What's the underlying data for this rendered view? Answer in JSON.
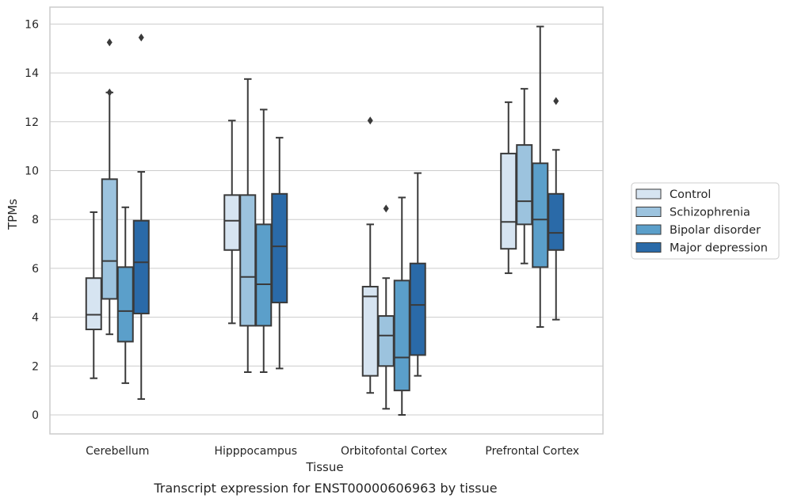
{
  "caption": "Transcript expression for ENST00000606963 by tissue",
  "chart_data": {
    "type": "boxplot",
    "xlabel": "Tissue",
    "ylabel": "TPMs",
    "ylim": [
      -0.75,
      16.7
    ],
    "yticks": [
      0,
      2,
      4,
      6,
      8,
      10,
      12,
      14,
      16
    ],
    "grid": "horizontal",
    "legend_position": "right",
    "categories": [
      "Cerebellum",
      "Hipppocampus",
      "Orbitofontal Cortex",
      "Prefrontal Cortex"
    ],
    "series": [
      {
        "name": "Control",
        "color": "#d6e4f1",
        "boxes": [
          {
            "whislo": 1.5,
            "q1": 3.5,
            "med": 4.1,
            "q3": 5.6,
            "whishi": 8.3,
            "fliers": []
          },
          {
            "whislo": 3.75,
            "q1": 6.75,
            "med": 7.95,
            "q3": 9.0,
            "whishi": 12.05,
            "fliers": []
          },
          {
            "whislo": 0.9,
            "q1": 1.6,
            "med": 4.85,
            "q3": 5.25,
            "whishi": 7.8,
            "fliers": [
              12.05
            ]
          },
          {
            "whislo": 5.8,
            "q1": 6.8,
            "med": 7.9,
            "q3": 10.7,
            "whishi": 12.8,
            "fliers": []
          }
        ]
      },
      {
        "name": "Schizophrenia",
        "color": "#9cc3de",
        "boxes": [
          {
            "whislo": 3.3,
            "q1": 4.75,
            "med": 6.3,
            "q3": 9.65,
            "whishi": 13.2,
            "fliers": [
              13.2,
              15.25
            ]
          },
          {
            "whislo": 1.75,
            "q1": 3.65,
            "med": 5.65,
            "q3": 9.0,
            "whishi": 13.75,
            "fliers": []
          },
          {
            "whislo": 0.25,
            "q1": 2.0,
            "med": 3.25,
            "q3": 4.05,
            "whishi": 5.6,
            "fliers": [
              8.45
            ]
          },
          {
            "whislo": 6.2,
            "q1": 7.8,
            "med": 8.75,
            "q3": 11.05,
            "whishi": 13.35,
            "fliers": []
          }
        ]
      },
      {
        "name": "Bipolar disorder",
        "color": "#5b9fca",
        "boxes": [
          {
            "whislo": 1.3,
            "q1": 3.0,
            "med": 4.25,
            "q3": 6.05,
            "whishi": 8.5,
            "fliers": []
          },
          {
            "whislo": 1.75,
            "q1": 3.65,
            "med": 5.35,
            "q3": 7.8,
            "whishi": 12.5,
            "fliers": []
          },
          {
            "whislo": 0.0,
            "q1": 1.0,
            "med": 2.35,
            "q3": 5.5,
            "whishi": 8.9,
            "fliers": []
          },
          {
            "whislo": 3.6,
            "q1": 6.05,
            "med": 8.0,
            "q3": 10.3,
            "whishi": 15.9,
            "fliers": []
          }
        ]
      },
      {
        "name": "Major depression",
        "color": "#2a6aa8",
        "boxes": [
          {
            "whislo": 0.65,
            "q1": 4.15,
            "med": 6.25,
            "q3": 7.95,
            "whishi": 9.95,
            "fliers": [
              15.45
            ]
          },
          {
            "whislo": 1.9,
            "q1": 4.6,
            "med": 6.9,
            "q3": 9.05,
            "whishi": 11.35,
            "fliers": []
          },
          {
            "whislo": 1.6,
            "q1": 2.45,
            "med": 4.5,
            "q3": 6.2,
            "whishi": 9.9,
            "fliers": []
          },
          {
            "whislo": 3.9,
            "q1": 6.75,
            "med": 7.45,
            "q3": 9.05,
            "whishi": 10.85,
            "fliers": [
              12.85
            ]
          }
        ]
      }
    ]
  }
}
